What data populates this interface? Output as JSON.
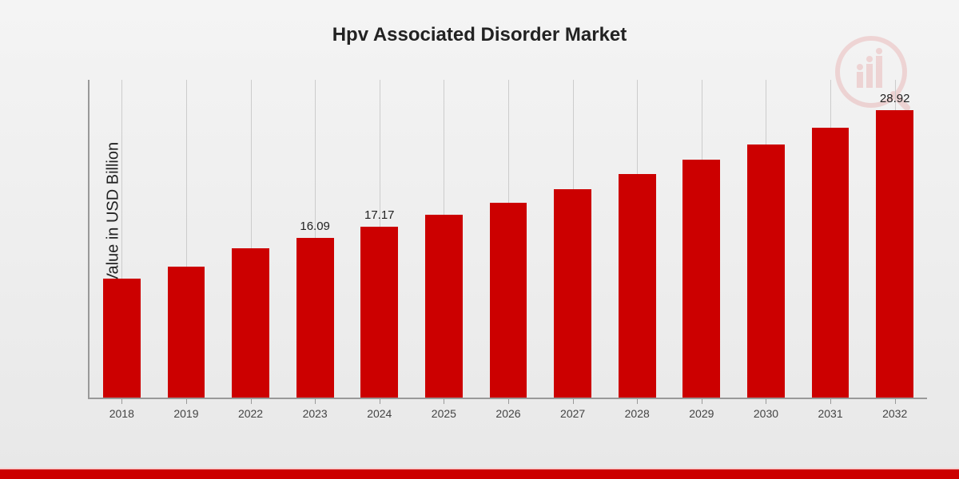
{
  "title": "Hpv Associated Disorder Market",
  "ylabel": "Market Value in USD Billion",
  "chart": {
    "type": "bar",
    "categories": [
      "2018",
      "2019",
      "2022",
      "2023",
      "2024",
      "2025",
      "2026",
      "2027",
      "2028",
      "2029",
      "2030",
      "2031",
      "2032"
    ],
    "values": [
      12.0,
      13.2,
      15.0,
      16.09,
      17.17,
      18.4,
      19.6,
      21.0,
      22.5,
      24.0,
      25.5,
      27.2,
      28.92
    ],
    "labels": [
      "",
      "",
      "",
      "16.09",
      "17.17",
      "",
      "",
      "",
      "",
      "",
      "",
      "",
      "28.92"
    ],
    "bar_color": "#cc0000",
    "ymax": 32,
    "ymin": 0,
    "bar_width_ratio": 0.58,
    "grid_color": "#cccccc",
    "axis_color": "#999999",
    "background_gradient": [
      "#f4f4f4",
      "#e8e8e8"
    ],
    "title_fontsize": 24,
    "ylabel_fontsize": 20,
    "xlabel_fontsize": 14,
    "value_label_fontsize": 15
  },
  "stripe_color": "#cc0000"
}
